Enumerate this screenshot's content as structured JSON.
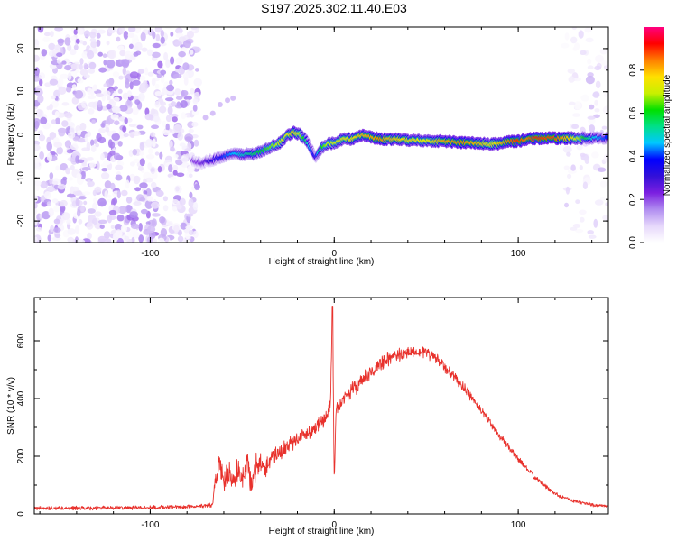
{
  "title": "S197.2025.302.11.40.E03",
  "colors": {
    "snr_line": "#e8312c",
    "background": "#ffffff",
    "axis": "#000000",
    "colormap": [
      "#ffffff",
      "#e6d8fb",
      "#b08cf0",
      "#7b1fe0",
      "#3310d8",
      "#0000ff",
      "#00c8ff",
      "#00e08a",
      "#00e000",
      "#c8f000",
      "#ffe000",
      "#ff7f00",
      "#ff0000",
      "#ff007f"
    ]
  },
  "chart_data": [
    {
      "type": "heatmap",
      "name": "spectrogram",
      "xlabel": "Height of straight line (km)",
      "ylabel": "Frequency (Hz)",
      "xlim": [
        -163,
        149
      ],
      "ylim": [
        -25,
        25
      ],
      "xticks": [
        -100,
        0,
        100
      ],
      "xtick_labels": [
        "-100",
        "0",
        "100"
      ],
      "yticks": [
        -20,
        -10,
        0,
        10,
        20
      ],
      "ytick_labels": [
        "-20",
        "-10",
        "0",
        "10",
        "20"
      ],
      "colorbar": {
        "label": "Normalized spectral amplitude",
        "range": [
          0,
          1
        ],
        "ticks": [
          0.0,
          0.2,
          0.4,
          0.6,
          0.8
        ],
        "tick_labels": [
          "0.0",
          "0.2",
          "0.4",
          "0.6",
          "0.8"
        ]
      },
      "noise_regions": [
        {
          "x_range": [
            -163,
            -74
          ],
          "amplitude": 0.08
        },
        {
          "x_range": [
            125,
            149
          ],
          "amplitude": 0.03
        }
      ],
      "ridge": {
        "x": [
          -77,
          -72,
          -68,
          -64,
          -60,
          -55,
          -50,
          -45,
          -40,
          -35,
          -30,
          -25,
          -22,
          -18,
          -15,
          -13,
          -10,
          -7,
          -3,
          0,
          5,
          10,
          15,
          20,
          25,
          30,
          40,
          50,
          60,
          70,
          80,
          85,
          90,
          95,
          100,
          105,
          110,
          120,
          130,
          140,
          148
        ],
        "frequency": [
          -6,
          -6.5,
          -6,
          -5.5,
          -5,
          -4.5,
          -4.5,
          -4.5,
          -4,
          -3,
          -2,
          0,
          0.5,
          0,
          -1.5,
          -3,
          -5,
          -3,
          -2,
          -2,
          -1,
          -1,
          0,
          -0.5,
          -1,
          -1,
          -1.2,
          -1.4,
          -1.5,
          -1.8,
          -2,
          -2.2,
          -2,
          -1.5,
          -1.5,
          -1,
          -0.8,
          -0.8,
          -0.8,
          -0.8,
          -0.8
        ],
        "amplitude": [
          0.2,
          0.25,
          0.3,
          0.35,
          0.4,
          0.45,
          0.5,
          0.55,
          0.6,
          0.65,
          0.7,
          0.75,
          0.8,
          0.7,
          0.55,
          0.45,
          0.35,
          0.6,
          0.7,
          0.72,
          0.75,
          0.78,
          0.8,
          0.82,
          0.85,
          0.8,
          0.78,
          0.75,
          0.82,
          0.85,
          0.8,
          0.75,
          0.8,
          0.85,
          0.9,
          0.85,
          0.9,
          0.88,
          0.78,
          0.5,
          0.4
        ]
      }
    },
    {
      "type": "line",
      "name": "snr",
      "xlabel": "Height of straight line (km)",
      "ylabel": "SNR (10 * v/v)",
      "xlim": [
        -163,
        149
      ],
      "ylim": [
        0,
        750
      ],
      "xticks": [
        -100,
        0,
        100
      ],
      "xtick_labels": [
        "-100",
        "0",
        "100"
      ],
      "yticks": [
        0,
        200,
        400,
        600
      ],
      "ytick_labels": [
        "0",
        "200",
        "400",
        "600"
      ],
      "series": [
        {
          "name": "SNR",
          "x": [
            -163,
            -140,
            -120,
            -100,
            -80,
            -66,
            -64,
            -62,
            -60,
            -57,
            -55,
            -52,
            -50,
            -47,
            -45,
            -42,
            -38,
            -34,
            -30,
            -25,
            -20,
            -15,
            -10,
            -5,
            -2,
            -1,
            0,
            1,
            3,
            5,
            10,
            15,
            20,
            25,
            30,
            40,
            45,
            50,
            55,
            60,
            70,
            80,
            90,
            100,
            110,
            120,
            130,
            140,
            149
          ],
          "y": [
            20,
            20,
            22,
            22,
            25,
            30,
            150,
            180,
            100,
            140,
            110,
            160,
            120,
            170,
            100,
            190,
            150,
            200,
            210,
            240,
            260,
            280,
            300,
            330,
            380,
            720,
            120,
            360,
            380,
            400,
            430,
            460,
            490,
            520,
            540,
            560,
            565,
            560,
            540,
            510,
            440,
            360,
            270,
            190,
            120,
            70,
            45,
            32,
            25
          ],
          "noise": [
            8,
            8,
            8,
            8,
            8,
            10,
            60,
            70,
            50,
            60,
            50,
            60,
            50,
            60,
            50,
            60,
            40,
            40,
            40,
            35,
            30,
            30,
            30,
            30,
            30,
            0,
            40,
            30,
            30,
            30,
            30,
            30,
            30,
            30,
            30,
            25,
            25,
            25,
            25,
            25,
            20,
            18,
            15,
            12,
            10,
            8,
            8,
            8,
            6
          ]
        }
      ]
    }
  ]
}
